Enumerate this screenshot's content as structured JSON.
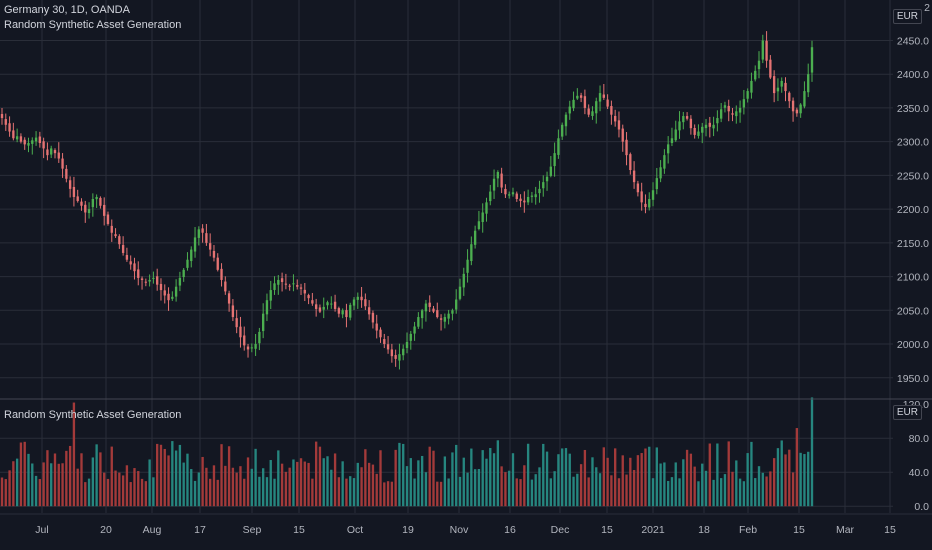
{
  "symbol_title": "Germany 30, 1D, OANDA",
  "main_indicator": "Random Synthetic Asset Generation",
  "sub_indicator": "Random Synthetic Asset Generation",
  "currency": "EUR",
  "top_partial_label": "2",
  "colors": {
    "background": "#131722",
    "grid": "#2a2e39",
    "up": "#26a69a",
    "down": "#ef5350",
    "candle_up": "#4caf50",
    "candle_down": "#e57373",
    "vol_up": "#26867f",
    "vol_down": "#a33a3a"
  },
  "chart_data": {
    "type": "candlestick",
    "price_axis": {
      "ticks": [
        "2450.0",
        "2400.0",
        "2350.0",
        "2300.0",
        "2250.0",
        "2200.0",
        "2150.0",
        "2100.0",
        "2050.0",
        "2000.0",
        "1950.0"
      ],
      "range": [
        1920,
        2510
      ]
    },
    "x_ticks": [
      "Jul",
      "20",
      "Aug",
      "17",
      "Sep",
      "15",
      "Oct",
      "19",
      "Nov",
      "16",
      "Dec",
      "15",
      "2021",
      "18",
      "Feb",
      "15",
      "Mar",
      "15"
    ],
    "volume_axis": {
      "ticks": [
        "80.0",
        "40.0",
        "0.0"
      ],
      "partial_top": "120.0",
      "range": [
        -8,
        125
      ]
    },
    "close": [
      2335,
      2325,
      2315,
      2305,
      2308,
      2300,
      2296,
      2298,
      2302,
      2306,
      2298,
      2290,
      2280,
      2290,
      2283,
      2275,
      2260,
      2245,
      2230,
      2218,
      2212,
      2205,
      2195,
      2200,
      2215,
      2218,
      2205,
      2190,
      2178,
      2165,
      2160,
      2148,
      2135,
      2125,
      2118,
      2108,
      2098,
      2095,
      2092,
      2095,
      2098,
      2088,
      2080,
      2072,
      2065,
      2070,
      2085,
      2098,
      2110,
      2125,
      2140,
      2158,
      2170,
      2165,
      2150,
      2140,
      2128,
      2110,
      2095,
      2078,
      2060,
      2040,
      2025,
      2010,
      1998,
      1992,
      1995,
      2000,
      2018,
      2045,
      2065,
      2080,
      2090,
      2095,
      2092,
      2088,
      2086,
      2090,
      2085,
      2082,
      2075,
      2068,
      2060,
      2052,
      2048,
      2055,
      2062,
      2060,
      2052,
      2045,
      2050,
      2040,
      2058,
      2066,
      2070,
      2065,
      2056,
      2044,
      2032,
      2020,
      2010,
      2000,
      1992,
      1982,
      1978,
      1985,
      1993,
      2003,
      2015,
      2026,
      2040,
      2050,
      2060,
      2055,
      2048,
      2040,
      2036,
      2040,
      2045,
      2050,
      2066,
      2085,
      2104,
      2125,
      2148,
      2168,
      2182,
      2195,
      2210,
      2226,
      2245,
      2255,
      2232,
      2222,
      2222,
      2225,
      2215,
      2212,
      2210,
      2218,
      2220,
      2222,
      2230,
      2240,
      2248,
      2263,
      2283,
      2305,
      2325,
      2340,
      2352,
      2362,
      2368,
      2365,
      2350,
      2340,
      2345,
      2360,
      2372,
      2365,
      2352,
      2340,
      2330,
      2318,
      2300,
      2280,
      2258,
      2240,
      2225,
      2210,
      2203,
      2215,
      2228,
      2246,
      2262,
      2280,
      2296,
      2305,
      2318,
      2330,
      2338,
      2334,
      2320,
      2310,
      2315,
      2322,
      2325,
      2322,
      2325,
      2335,
      2348,
      2354,
      2345,
      2340,
      2345,
      2350,
      2363,
      2375,
      2390,
      2405,
      2420,
      2450,
      2420,
      2395,
      2372,
      2380,
      2390,
      2375,
      2360,
      2345,
      2342,
      2355,
      2375,
      2400,
      2440
    ]
  }
}
